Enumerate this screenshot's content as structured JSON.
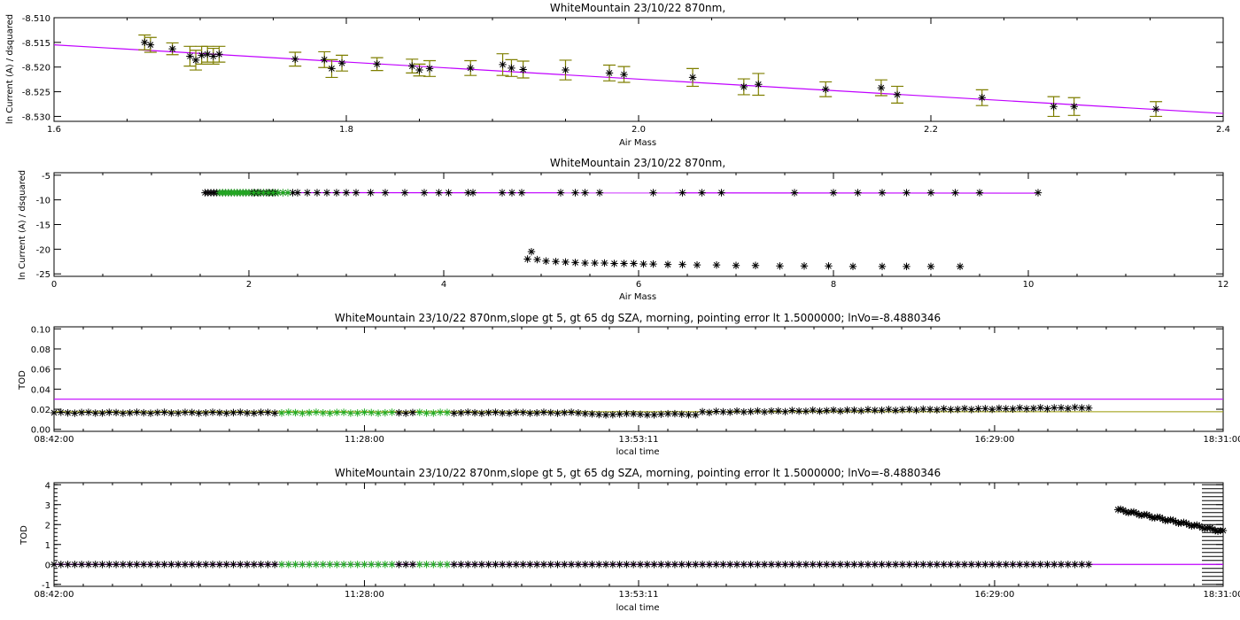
{
  "colors": {
    "axis": "#000000",
    "fit_line": "#c000ff",
    "error_bar": "#7f7f00",
    "marker_used": "#000000",
    "marker_highlight": "#22aa22",
    "threshold_line": "#c000ff",
    "mean_line": "#999900"
  },
  "chart_data": [
    {
      "type": "scatter",
      "title": "WhiteMountain 23/10/22 870nm,",
      "xlabel": "Air Mass",
      "ylabel": "ln Current (A) / dsquared",
      "xlim": [
        1.6,
        2.4
      ],
      "ylim": [
        -8.531,
        -8.51
      ],
      "xticks": [
        "1.6",
        "1.8",
        "2.0",
        "2.2",
        "2.4"
      ],
      "yticks": [
        "-8.510",
        "-8.515",
        "-8.520",
        "-8.525",
        "-8.530"
      ],
      "fit": {
        "x": [
          1.6,
          2.4
        ],
        "y": [
          -8.5155,
          -8.5294
        ]
      },
      "points": [
        {
          "x": 1.662,
          "y": -8.515,
          "err": 0.0015
        },
        {
          "x": 1.666,
          "y": -8.5155,
          "err": 0.0015
        },
        {
          "x": 1.681,
          "y": -8.5163,
          "err": 0.0012
        },
        {
          "x": 1.693,
          "y": -8.5178,
          "err": 0.002
        },
        {
          "x": 1.697,
          "y": -8.5186,
          "err": 0.002
        },
        {
          "x": 1.701,
          "y": -8.5176,
          "err": 0.0018
        },
        {
          "x": 1.705,
          "y": -8.5174,
          "err": 0.0016
        },
        {
          "x": 1.709,
          "y": -8.5178,
          "err": 0.0016
        },
        {
          "x": 1.713,
          "y": -8.5174,
          "err": 0.0016
        },
        {
          "x": 1.765,
          "y": -8.5184,
          "err": 0.0014
        },
        {
          "x": 1.785,
          "y": -8.5185,
          "err": 0.0016
        },
        {
          "x": 1.79,
          "y": -8.5203,
          "err": 0.0018
        },
        {
          "x": 1.797,
          "y": -8.5192,
          "err": 0.0016
        },
        {
          "x": 1.821,
          "y": -8.5194,
          "err": 0.0013
        },
        {
          "x": 1.845,
          "y": -8.5198,
          "err": 0.0014
        },
        {
          "x": 1.85,
          "y": -8.5206,
          "err": 0.0012
        },
        {
          "x": 1.857,
          "y": -8.5203,
          "err": 0.0016
        },
        {
          "x": 1.885,
          "y": -8.5202,
          "err": 0.0015
        },
        {
          "x": 1.907,
          "y": -8.5195,
          "err": 0.0022
        },
        {
          "x": 1.913,
          "y": -8.5202,
          "err": 0.0017
        },
        {
          "x": 1.921,
          "y": -8.5205,
          "err": 0.0017
        },
        {
          "x": 1.95,
          "y": -8.5206,
          "err": 0.002
        },
        {
          "x": 1.98,
          "y": -8.5212,
          "err": 0.0016
        },
        {
          "x": 1.99,
          "y": -8.5215,
          "err": 0.0016
        },
        {
          "x": 2.037,
          "y": -8.5221,
          "err": 0.0018
        },
        {
          "x": 2.072,
          "y": -8.524,
          "err": 0.0016
        },
        {
          "x": 2.082,
          "y": -8.5235,
          "err": 0.0022
        },
        {
          "x": 2.128,
          "y": -8.5245,
          "err": 0.0015
        },
        {
          "x": 2.166,
          "y": -8.5242,
          "err": 0.0016
        },
        {
          "x": 2.177,
          "y": -8.5256,
          "err": 0.0017
        },
        {
          "x": 2.235,
          "y": -8.5262,
          "err": 0.0016
        },
        {
          "x": 2.284,
          "y": -8.528,
          "err": 0.002
        },
        {
          "x": 2.298,
          "y": -8.528,
          "err": 0.0018
        },
        {
          "x": 2.354,
          "y": -8.5285,
          "err": 0.0015
        }
      ]
    },
    {
      "type": "scatter",
      "title": "WhiteMountain 23/10/22 870nm,",
      "xlabel": "Air Mass",
      "ylabel": "ln Current (A) / dsquared",
      "xlim": [
        0,
        12
      ],
      "ylim": [
        -25.5,
        -4.5
      ],
      "xticks": [
        "0",
        "2",
        "4",
        "6",
        "8",
        "10",
        "12"
      ],
      "yticks": [
        "-5",
        "-10",
        "-15",
        "-20",
        "-25"
      ],
      "fit": {
        "x": [
          1.55,
          10.1
        ],
        "y": [
          -8.52,
          -8.64
        ]
      },
      "upper_points": {
        "x": [
          1.55,
          1.58,
          1.61,
          1.64,
          1.67,
          1.7,
          1.73,
          1.76,
          1.79,
          1.82,
          1.85,
          1.88,
          1.91,
          1.94,
          1.97,
          2.0,
          2.03,
          2.06,
          2.09,
          2.12,
          2.15,
          2.18,
          2.21,
          2.24,
          2.27,
          2.3,
          2.35,
          2.4,
          2.45,
          2.5,
          2.6,
          2.7,
          2.8,
          2.9,
          3.0,
          3.1,
          3.25,
          3.4,
          3.6,
          3.8,
          3.95,
          4.05,
          4.25,
          4.3,
          4.6,
          4.7,
          4.8,
          5.2,
          5.35,
          5.45,
          5.6,
          6.15,
          6.45,
          6.65,
          6.85,
          7.6,
          8.0,
          8.25,
          8.5,
          8.75,
          9.0,
          9.25,
          9.5,
          10.1
        ],
        "y": -8.55
      },
      "highlight_points": {
        "x": [
          1.7,
          1.73,
          1.76,
          1.79,
          1.82,
          1.85,
          1.88,
          1.91,
          1.94,
          1.97,
          2.0,
          2.05,
          2.1,
          2.15,
          2.2,
          2.25,
          2.3,
          2.35,
          2.4
        ],
        "y": -8.55
      },
      "lower_points": {
        "x": [
          4.86,
          4.9,
          4.96,
          5.05,
          5.15,
          5.25,
          5.35,
          5.45,
          5.55,
          5.65,
          5.75,
          5.85,
          5.95,
          6.05,
          6.15,
          6.3,
          6.45,
          6.6,
          6.8,
          7.0,
          7.2,
          7.45,
          7.7,
          7.95,
          8.2,
          8.5,
          8.75,
          9.0,
          9.3
        ],
        "y": [
          -22.0,
          -20.5,
          -22.1,
          -22.4,
          -22.5,
          -22.6,
          -22.7,
          -22.8,
          -22.8,
          -22.8,
          -22.9,
          -22.9,
          -22.9,
          -23.0,
          -23.0,
          -23.1,
          -23.1,
          -23.2,
          -23.2,
          -23.3,
          -23.3,
          -23.4,
          -23.4,
          -23.4,
          -23.5,
          -23.5,
          -23.5,
          -23.5,
          -23.5
        ]
      }
    },
    {
      "type": "scatter",
      "title": "WhiteMountain 23/10/22 870nm,slope gt 5, gt 65 dg SZA, morning, pointing error lt 1.5000000; lnVo=-8.4880346",
      "xlabel": "local time",
      "ylabel": "TOD",
      "xlim": [
        0,
        1
      ],
      "ylim": [
        -0.002,
        0.102
      ],
      "xticks": [
        "08:42:00",
        "11:28:00",
        "13:53:11",
        "16:29:00",
        "18:31:00"
      ],
      "yticks": [
        "0.10",
        "0.08",
        "0.06",
        "0.04",
        "0.02",
        "0.00"
      ],
      "threshold": 0.03,
      "mean_line": 0.0175,
      "series_start": 0.0,
      "series_end": 0.885,
      "highlight_ranges": [
        [
          0.19,
          0.29
        ],
        [
          0.31,
          0.34
        ]
      ]
    },
    {
      "type": "scatter",
      "title": "WhiteMountain 23/10/22 870nm,slope gt 5, gt 65 dg SZA, morning, pointing error lt 1.5000000; lnVo=-8.4880346",
      "xlabel": "local time",
      "ylabel": "TOD",
      "xlim": [
        0,
        1
      ],
      "ylim": [
        -1.1,
        4.1
      ],
      "xticks": [
        "08:42:00",
        "11:28:00",
        "13:53:11",
        "16:29:00",
        "18:31:00"
      ],
      "yticks": [
        "4",
        "3",
        "2",
        "1",
        "0",
        "-1"
      ],
      "series_start": 0.0,
      "series_end": 0.885,
      "highlight_ranges": [
        [
          0.19,
          0.29
        ],
        [
          0.31,
          0.34
        ]
      ],
      "tail": {
        "x_start": 0.91,
        "x_end": 1.0,
        "y_start": 2.75,
        "y_end": 1.65
      }
    }
  ]
}
